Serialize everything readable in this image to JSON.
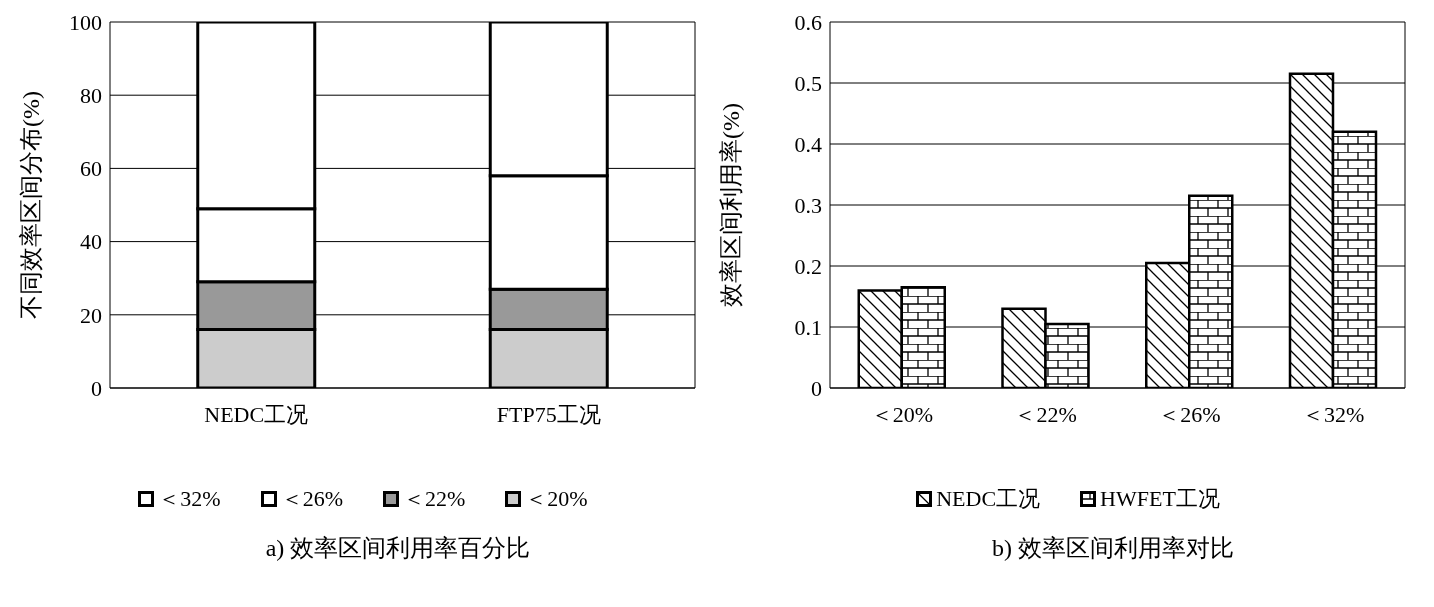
{
  "chart_data": [
    {
      "type": "bar",
      "title": "a) 效率区间利用率百分比",
      "ylabel": "不同效率区间分布(%)",
      "categories": [
        "NEDC工况",
        "FTP75工况"
      ],
      "stacked": true,
      "series": [
        {
          "name": "＜20%",
          "color": "#cccccc",
          "values": [
            16,
            16
          ]
        },
        {
          "name": "＜22%",
          "color": "#999999",
          "values": [
            13,
            11
          ]
        },
        {
          "name": "＜26%",
          "color": "#ffffff",
          "values": [
            20,
            31
          ]
        },
        {
          "name": "＜32%",
          "color": "#ffffff",
          "values": [
            51,
            42
          ]
        }
      ],
      "ylim": [
        0,
        100
      ],
      "yticks": [
        0,
        20,
        40,
        60,
        80,
        100
      ],
      "grid": "y",
      "legend": "bottom"
    },
    {
      "type": "bar",
      "title": "b) 效率区间利用率对比",
      "ylabel": "效率区间利用率(%)",
      "categories": [
        "＜20%",
        "＜22%",
        "＜26%",
        "＜32%"
      ],
      "series": [
        {
          "name": "NEDC工况",
          "color": "#000000",
          "values": [
            0.16,
            0.13,
            0.205,
            0.515
          ]
        },
        {
          "name": "HWFET工况",
          "color": "#000000",
          "values": [
            0.165,
            0.105,
            0.315,
            0.42
          ]
        }
      ],
      "ylim": [
        0,
        0.6
      ],
      "yticks": [
        0,
        0.1,
        0.2,
        0.3,
        0.4,
        0.5,
        0.6
      ],
      "grid": "y",
      "legend": "bottom"
    }
  ]
}
